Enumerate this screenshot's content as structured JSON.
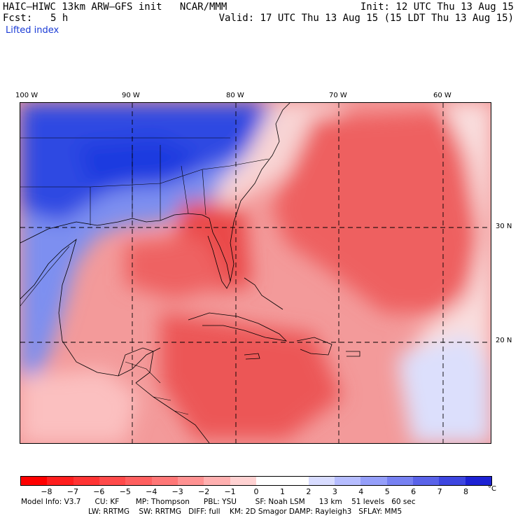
{
  "header": {
    "title": "HAIC–HIWC 13km ARW–GFS init   NCAR/MMM",
    "init": "Init: 12 UTC Thu 13 Aug 15",
    "fcst_label": "Fcst:",
    "fcst_value": "5 h",
    "valid": "Valid: 17 UTC Thu 13 Aug 15 (15 LDT Thu 13 Aug 15)",
    "field": "Lifted index"
  },
  "map": {
    "lon_labels": [
      "100 W",
      "90 W",
      "80 W",
      "70 W",
      "60 W"
    ],
    "lat_labels": [
      "30 N",
      "20 N"
    ],
    "colors": {
      "cold_deep": "#1e3be0",
      "cold_mid": "#6b82f0",
      "neutral": "#fbeaea",
      "warm_light": "#f5a0a0",
      "warm_mid": "#ee6868",
      "warm_deep": "#e83c3c"
    }
  },
  "colorbar": {
    "ticks": [
      "−8",
      "−7",
      "−6",
      "−5",
      "−4",
      "−3",
      "−2",
      "−1",
      "0",
      "1",
      "2",
      "3",
      "4",
      "5",
      "6",
      "7",
      "8"
    ],
    "unit": "°C",
    "colors": [
      "#ff0000",
      "#ff1e1e",
      "#ff3434",
      "#ff4a4a",
      "#ff5f5f",
      "#ff7777",
      "#ff9292",
      "#ffb0b0",
      "#ffd2d2",
      "#ffffff",
      "#ffffff",
      "#d8dcff",
      "#b6bdff",
      "#959ffa",
      "#7781f2",
      "#5a63e9",
      "#3d46e0",
      "#1d22d4"
    ]
  },
  "footer": {
    "line1": "Model Info: V3.7      CU: KF       MP: Thompson      PBL: YSU        SF: Noah LSM      13 km    51 levels   60 sec",
    "line2": "LW: RRTMG    SW: RRTMG   DIFF: full    KM: 2D Smagor DAMP: Rayleigh3   SFLAY: MM5"
  }
}
